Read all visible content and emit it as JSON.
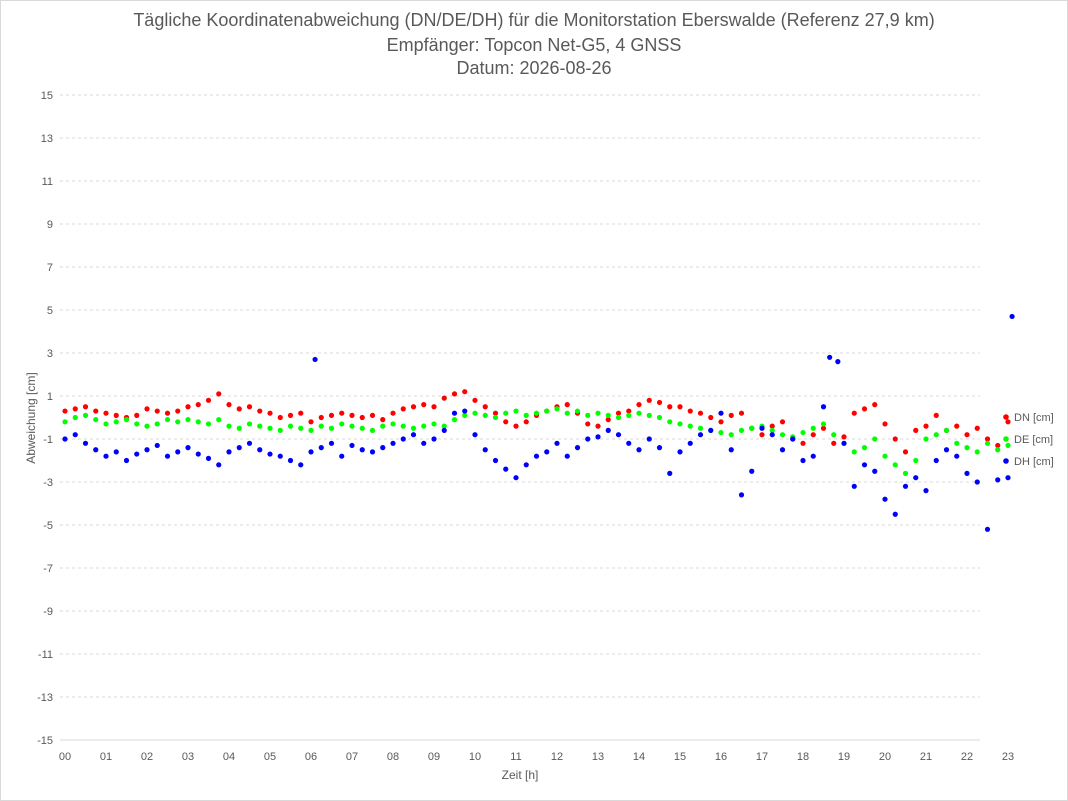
{
  "chart_data": {
    "type": "scatter",
    "title": "Tägliche Koordinatenabweichung (DN/DE/DH) für die Monitorstation Eberswalde (Referenz 27,9 km)",
    "subtitle": "Empfänger: Topcon Net-G5, 4 GNSS",
    "date_line": "Datum: 2026-08-26",
    "xlabel": "Zeit [h]",
    "ylabel": "Abweichung [cm]",
    "xlim": [
      0,
      23.25
    ],
    "ylim": [
      -15,
      15
    ],
    "x_ticks": [
      "00",
      "01",
      "02",
      "03",
      "04",
      "05",
      "06",
      "07",
      "08",
      "09",
      "10",
      "11",
      "12",
      "13",
      "14",
      "15",
      "16",
      "17",
      "18",
      "19",
      "20",
      "21",
      "22",
      "23"
    ],
    "y_ticks": [
      "15",
      "13",
      "11",
      "9",
      "7",
      "5",
      "3",
      "1",
      "-1",
      "-3",
      "-5",
      "-7",
      "-9",
      "-11",
      "-13",
      "-15"
    ],
    "grid": "horizontal dashed",
    "legend_position": "right",
    "series": [
      {
        "name": "DN [cm]",
        "color": "#ff0000",
        "x": [
          0,
          0.25,
          0.5,
          0.75,
          1,
          1.25,
          1.5,
          1.75,
          2,
          2.25,
          2.5,
          2.75,
          3,
          3.25,
          3.5,
          3.75,
          4,
          4.25,
          4.5,
          4.75,
          5,
          5.25,
          5.5,
          5.75,
          6,
          6.25,
          6.5,
          6.75,
          7,
          7.25,
          7.5,
          7.75,
          8,
          8.25,
          8.5,
          8.75,
          9,
          9.25,
          9.5,
          9.75,
          10,
          10.25,
          10.5,
          10.75,
          11,
          11.25,
          11.5,
          11.75,
          12,
          12.25,
          12.5,
          12.75,
          13,
          13.25,
          13.5,
          13.75,
          14,
          14.25,
          14.5,
          14.75,
          15,
          15.25,
          15.5,
          15.75,
          16,
          16.25,
          16.5,
          16.75,
          17,
          17.25,
          17.5,
          17.75,
          18,
          18.25,
          18.5,
          18.75,
          19,
          19.25,
          19.5,
          19.75,
          20,
          20.25,
          20.5,
          20.75,
          21,
          21.25,
          21.5,
          21.75,
          22,
          22.25,
          22.5,
          22.75,
          23
        ],
        "y": [
          0.3,
          0.4,
          0.5,
          0.3,
          0.2,
          0.1,
          0,
          0.1,
          0.4,
          0.3,
          0.2,
          0.3,
          0.5,
          0.6,
          0.8,
          1.1,
          0.6,
          0.4,
          0.5,
          0.3,
          0.2,
          0,
          0.1,
          0.2,
          -0.2,
          0,
          0.1,
          0.2,
          0.1,
          0,
          0.1,
          -0.1,
          0.2,
          0.4,
          0.5,
          0.6,
          0.5,
          0.9,
          1.1,
          1.2,
          0.8,
          0.5,
          0.2,
          -0.2,
          -0.4,
          -0.2,
          0.1,
          0.3,
          0.5,
          0.6,
          0.2,
          -0.3,
          -0.4,
          -0.1,
          0.2,
          0.3,
          0.6,
          0.8,
          0.7,
          0.5,
          0.5,
          0.3,
          0.2,
          0,
          -0.2,
          0.1,
          0.2,
          -0.5,
          -0.8,
          -0.4,
          -0.2,
          -1,
          -1.2,
          -0.8,
          -0.5,
          -1.2,
          -0.9,
          0.2,
          0.4,
          0.6,
          -0.3,
          -1,
          -1.6,
          -0.6,
          -0.4,
          0.1,
          -0.6,
          -0.4,
          -0.8,
          -0.5,
          -1,
          -1.3,
          -0.2
        ]
      },
      {
        "name": "DE [cm]",
        "color": "#00ff00",
        "x": [
          0,
          0.25,
          0.5,
          0.75,
          1,
          1.25,
          1.5,
          1.75,
          2,
          2.25,
          2.5,
          2.75,
          3,
          3.25,
          3.5,
          3.75,
          4,
          4.25,
          4.5,
          4.75,
          5,
          5.25,
          5.5,
          5.75,
          6,
          6.25,
          6.5,
          6.75,
          7,
          7.25,
          7.5,
          7.75,
          8,
          8.25,
          8.5,
          8.75,
          9,
          9.25,
          9.5,
          9.75,
          10,
          10.25,
          10.5,
          10.75,
          11,
          11.25,
          11.5,
          11.75,
          12,
          12.25,
          12.5,
          12.75,
          13,
          13.25,
          13.5,
          13.75,
          14,
          14.25,
          14.5,
          14.75,
          15,
          15.25,
          15.5,
          15.75,
          16,
          16.25,
          16.5,
          16.75,
          17,
          17.25,
          17.5,
          17.75,
          18,
          18.25,
          18.5,
          18.75,
          19,
          19.25,
          19.5,
          19.75,
          20,
          20.25,
          20.5,
          20.75,
          21,
          21.25,
          21.5,
          21.75,
          22,
          22.25,
          22.5,
          22.75,
          23
        ],
        "y": [
          -0.2,
          0,
          0.1,
          -0.1,
          -0.3,
          -0.2,
          -0.1,
          -0.3,
          -0.4,
          -0.3,
          -0.1,
          -0.2,
          -0.1,
          -0.2,
          -0.3,
          -0.1,
          -0.4,
          -0.5,
          -0.3,
          -0.4,
          -0.5,
          -0.6,
          -0.4,
          -0.5,
          -0.6,
          -0.4,
          -0.5,
          -0.3,
          -0.4,
          -0.5,
          -0.6,
          -0.4,
          -0.3,
          -0.4,
          -0.5,
          -0.4,
          -0.3,
          -0.4,
          -0.1,
          0.1,
          0.2,
          0.1,
          0,
          0.2,
          0.3,
          0.1,
          0.2,
          0.3,
          0.4,
          0.2,
          0.3,
          0.1,
          0.2,
          0.1,
          0,
          0.1,
          0.2,
          0.1,
          0,
          -0.2,
          -0.3,
          -0.4,
          -0.5,
          -0.6,
          -0.7,
          -0.8,
          -0.6,
          -0.5,
          -0.4,
          -0.6,
          -0.8,
          -0.9,
          -0.7,
          -0.5,
          -0.3,
          -0.8,
          -1.2,
          -1.6,
          -1.4,
          -1,
          -1.8,
          -2.2,
          -2.6,
          -2,
          -1,
          -0.8,
          -0.6,
          -1.2,
          -1.4,
          -1.6,
          -1.2,
          -1.5,
          -1.3
        ]
      },
      {
        "name": "DH [cm]",
        "color": "#0000ff",
        "x": [
          0,
          0.25,
          0.5,
          0.75,
          1,
          1.25,
          1.5,
          1.75,
          2,
          2.25,
          2.5,
          2.75,
          3,
          3.25,
          3.5,
          3.75,
          4,
          4.25,
          4.5,
          4.75,
          5,
          5.25,
          5.5,
          5.75,
          6,
          6.1,
          6.25,
          6.5,
          6.75,
          7,
          7.25,
          7.5,
          7.75,
          8,
          8.25,
          8.5,
          8.75,
          9,
          9.25,
          9.5,
          9.75,
          10,
          10.25,
          10.5,
          10.75,
          11,
          11.25,
          11.5,
          11.75,
          12,
          12.25,
          12.5,
          12.75,
          13,
          13.25,
          13.5,
          13.75,
          14,
          14.25,
          14.5,
          14.75,
          15,
          15.25,
          15.5,
          15.75,
          16,
          16.25,
          16.5,
          16.75,
          17,
          17.25,
          17.5,
          17.75,
          18,
          18.25,
          18.5,
          18.65,
          18.85,
          19,
          19.25,
          19.5,
          19.75,
          20,
          20.25,
          20.5,
          20.75,
          21,
          21.25,
          21.5,
          21.75,
          22,
          22.25,
          22.5,
          22.75,
          23,
          23.1
        ],
        "y": [
          -1,
          -0.8,
          -1.2,
          -1.5,
          -1.8,
          -1.6,
          -2,
          -1.7,
          -1.5,
          -1.3,
          -1.8,
          -1.6,
          -1.4,
          -1.7,
          -1.9,
          -2.2,
          -1.6,
          -1.4,
          -1.2,
          -1.5,
          -1.7,
          -1.8,
          -2,
          -2.2,
          -1.6,
          2.7,
          -1.4,
          -1.2,
          -1.8,
          -1.3,
          -1.5,
          -1.6,
          -1.4,
          -1.2,
          -1,
          -0.8,
          -1.2,
          -1,
          -0.6,
          0.2,
          0.3,
          -0.8,
          -1.5,
          -2,
          -2.4,
          -2.8,
          -2.2,
          -1.8,
          -1.6,
          -1.2,
          -1.8,
          -1.4,
          -1,
          -0.9,
          -0.6,
          -0.8,
          -1.2,
          -1.5,
          -1,
          -1.4,
          -2.6,
          -1.6,
          -1.2,
          -0.8,
          -0.6,
          0.2,
          -1.5,
          -3.6,
          -2.5,
          -0.5,
          -0.8,
          -1.5,
          -1,
          -2,
          -1.8,
          0.5,
          2.8,
          2.6,
          -1.2,
          -3.2,
          -2.2,
          -2.5,
          -3.8,
          -4.5,
          -3.2,
          -2.8,
          -3.4,
          -2,
          -1.5,
          -1.8,
          -2.6,
          -3,
          -5.2,
          -2.9,
          -2.8,
          4.7
        ]
      }
    ]
  }
}
